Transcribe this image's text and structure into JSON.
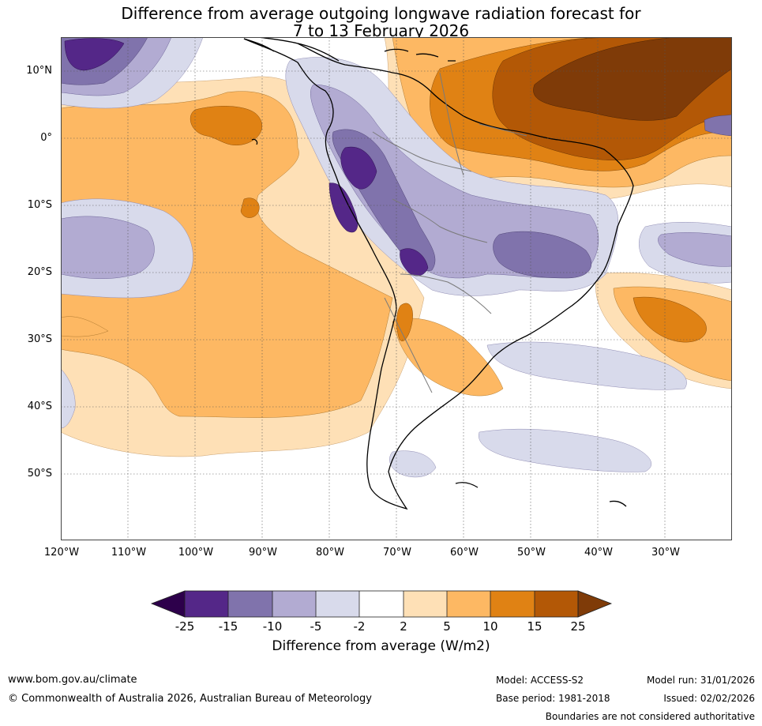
{
  "title": {
    "line1": "Difference from average outgoing longwave radiation forecast for",
    "line2": "7 to 13 February 2026"
  },
  "axes": {
    "lat_labels": [
      "10°N",
      "0°",
      "10°S",
      "20°S",
      "30°S",
      "40°S",
      "50°S"
    ],
    "lon_labels": [
      "120°W",
      "110°W",
      "100°W",
      "90°W",
      "80°W",
      "70°W",
      "60°W",
      "50°W",
      "40°W",
      "30°W"
    ]
  },
  "colorbar": {
    "ticks": [
      "-25",
      "-15",
      "-10",
      "-5",
      "-2",
      "2",
      "5",
      "10",
      "15",
      "25"
    ],
    "colors": [
      "#2d004b",
      "#542788",
      "#8073ac",
      "#b2abd2",
      "#d8daeb",
      "#ffffff",
      "#fee0b6",
      "#fdb863",
      "#e08214",
      "#b35806",
      "#7f3b08"
    ],
    "label": "Difference from average (W/m2)"
  },
  "footer": {
    "website": "www.bom.gov.au/climate",
    "copyright": "© Commonwealth of Australia 2026, Australian Bureau of Meteorology",
    "model": "Model: ACCESS-S2",
    "base_period": "Base period: 1981-2018",
    "model_run": "Model run: 31/01/2026",
    "issued": "Issued: 02/02/2026",
    "disclaimer": "Boundaries are not considered authoritative"
  }
}
